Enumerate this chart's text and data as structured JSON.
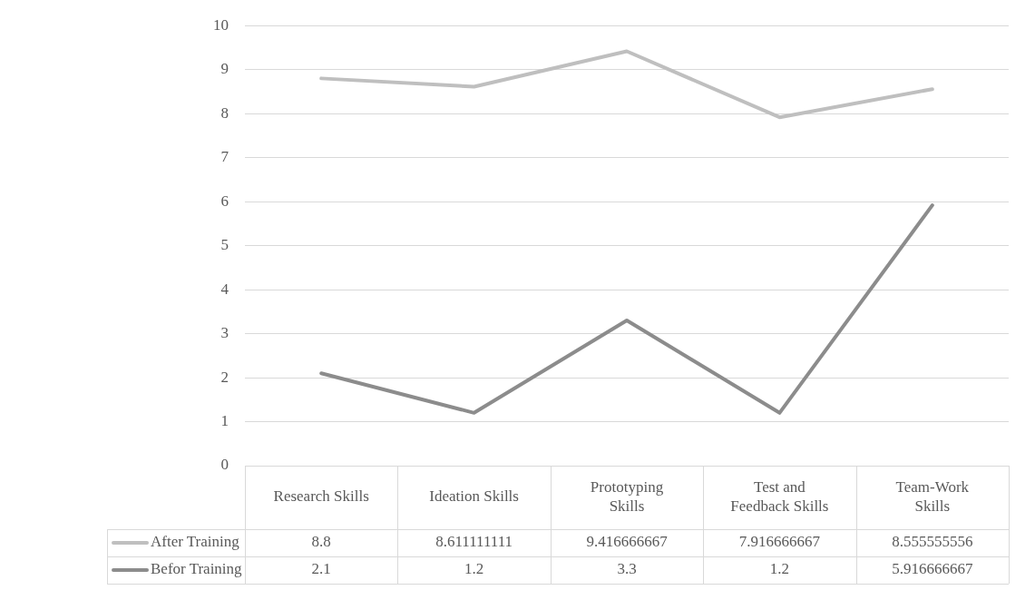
{
  "chart_data": {
    "type": "line",
    "categories": [
      "Research Skills",
      "Ideation Skills",
      "Prototyping Skills",
      "Test and Feedback Skills",
      "Team-Work Skills"
    ],
    "series": [
      {
        "name": "After Training",
        "color": "#bfbfbf",
        "values": [
          8.8,
          8.611111111,
          9.416666667,
          7.916666667,
          8.555555556
        ]
      },
      {
        "name": "Befor Training",
        "color": "#8c8c8c",
        "values": [
          2.1,
          1.2,
          3.3,
          1.2,
          5.916666667
        ]
      }
    ],
    "ylim": [
      0,
      10
    ],
    "yticks": [
      0,
      1,
      2,
      3,
      4,
      5,
      6,
      7,
      8,
      9,
      10
    ],
    "grid": "y",
    "legend": "bottom left",
    "data_labels": true,
    "marker": "none",
    "line_style": "solid"
  }
}
